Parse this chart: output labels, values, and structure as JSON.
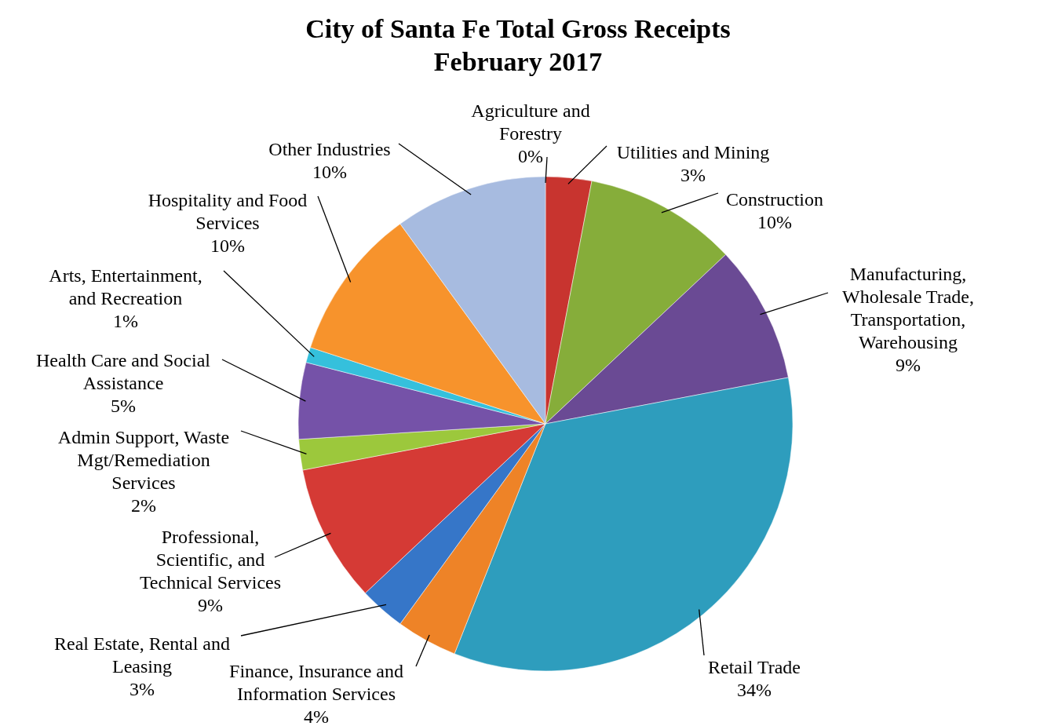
{
  "chart_data": {
    "type": "pie",
    "title": "City of Santa Fe Total Gross Receipts\nFebruary 2017",
    "categories": [
      "Agriculture and Forestry",
      "Utilities and Mining",
      "Construction",
      "Manufacturing, Wholesale Trade, Transportation, Warehousing",
      "Retail Trade",
      "Finance, Insurance and Information Services",
      "Real Estate, Rental and Leasing",
      "Professional, Scientific, and Technical Services",
      "Admin Support, Waste Mgt/Remediation Services",
      "Health Care and Social Assistance",
      "Arts, Entertainment, and Recreation",
      "Hospitality and Food Services",
      "Other Industries"
    ],
    "values": [
      0,
      3,
      10,
      9,
      34,
      4,
      3,
      9,
      2,
      5,
      1,
      10,
      10
    ],
    "value_labels": [
      "0%",
      "3%",
      "10%",
      "9%",
      "34%",
      "4%",
      "3%",
      "9%",
      "2%",
      "5%",
      "1%",
      "10%",
      "10%"
    ],
    "colors": [
      "#8aa0c8",
      "#c8342f",
      "#86ad3a",
      "#6a4a94",
      "#2e9dbd",
      "#ee8327",
      "#3676c8",
      "#d53a35",
      "#9cc83c",
      "#7552a8",
      "#35c0dc",
      "#f7932c",
      "#a7bbe0"
    ]
  }
}
